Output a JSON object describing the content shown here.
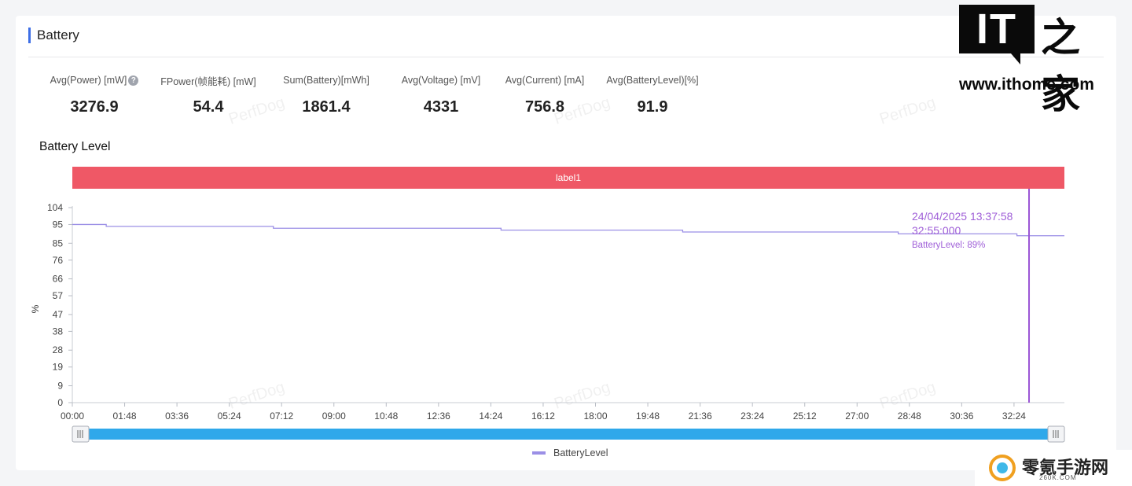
{
  "section": {
    "title": "Battery"
  },
  "metrics": [
    {
      "label": "Avg(Power) [mW]",
      "value": "3276.9",
      "has_help": true
    },
    {
      "label": "FPower(帧能耗) [mW]",
      "value": "54.4"
    },
    {
      "label": "Sum(Battery)[mWh]",
      "value": "1861.4"
    },
    {
      "label": "Avg(Voltage) [mV]",
      "value": "4331"
    },
    {
      "label": "Avg(Current) [mA]",
      "value": "756.8"
    },
    {
      "label": "Avg(BatteryLevel)[%]",
      "value": "91.9"
    }
  ],
  "watermark_text": "PerfDog",
  "branding": {
    "it_logo": "IT",
    "it_logo_cn": "之家",
    "url": "www.ithome.com",
    "site2_name": "零氪手游网",
    "site2_url": "260K.COM"
  },
  "colors": {
    "label_band": "#ef5866",
    "series": "#9b8fe6",
    "cursor": "#9b55d6",
    "slider": "#2fa8ea",
    "title_bar": "#3d6ee6"
  },
  "chart_data": {
    "type": "line",
    "title": "Battery Level",
    "ylabel": "%",
    "xlabel": "",
    "label_band": "label1",
    "ylim": [
      0,
      104
    ],
    "y_ticks": [
      0,
      9,
      19,
      28,
      38,
      47,
      57,
      66,
      76,
      85,
      95,
      104
    ],
    "xlim_minutes": [
      0,
      2048
    ],
    "x_ticks": [
      "00:00",
      "01:48",
      "03:36",
      "05:24",
      "07:12",
      "09:00",
      "10:48",
      "12:36",
      "14:24",
      "16:12",
      "18:00",
      "19:48",
      "21:36",
      "23:24",
      "25:12",
      "27:00",
      "28:48",
      "30:36",
      "32:24"
    ],
    "series": [
      {
        "name": "BatteryLevel",
        "step": true,
        "points": [
          {
            "x": "00:00",
            "y": 95
          },
          {
            "x": "01:10",
            "y": 94
          },
          {
            "x": "06:55",
            "y": 93
          },
          {
            "x": "14:45",
            "y": 92
          },
          {
            "x": "21:00",
            "y": 91
          },
          {
            "x": "28:25",
            "y": 90
          },
          {
            "x": "32:30",
            "y": 89
          },
          {
            "x": "34:08",
            "y": 89
          }
        ]
      }
    ],
    "cursor": {
      "x": "32:55",
      "datetime": "24/04/2025 13:37:58",
      "elapsed": "32:55:000",
      "readout": "BatteryLevel: 89%"
    },
    "grid": false,
    "legend": "bottom-center"
  }
}
